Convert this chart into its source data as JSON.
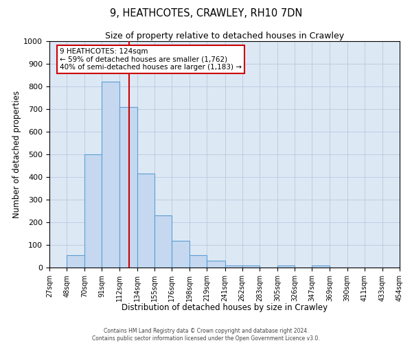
{
  "title": "9, HEATHCOTES, CRAWLEY, RH10 7DN",
  "subtitle": "Size of property relative to detached houses in Crawley",
  "xlabel": "Distribution of detached houses by size in Crawley",
  "ylabel": "Number of detached properties",
  "bin_edges": [
    27,
    48,
    70,
    91,
    112,
    134,
    155,
    176,
    198,
    219,
    241,
    262,
    283,
    305,
    326,
    347,
    369,
    390,
    411,
    433,
    454
  ],
  "bar_heights": [
    0,
    55,
    500,
    820,
    710,
    415,
    230,
    118,
    55,
    30,
    10,
    10,
    0,
    10,
    0,
    10,
    0,
    0,
    0,
    0
  ],
  "bar_color": "#c5d8f0",
  "bar_edgecolor": "#5a9fd4",
  "bg_color": "#dde8f5",
  "red_line_x": 124,
  "ylim": [
    0,
    1000
  ],
  "annotation_title": "9 HEATHCOTES: 124sqm",
  "annotation_line1": "← 59% of detached houses are smaller (1,762)",
  "annotation_line2": "40% of semi-detached houses are larger (1,183) →",
  "annotation_box_color": "#cc0000",
  "footer_line1": "Contains HM Land Registry data © Crown copyright and database right 2024.",
  "footer_line2": "Contains public sector information licensed under the Open Government Licence v3.0."
}
